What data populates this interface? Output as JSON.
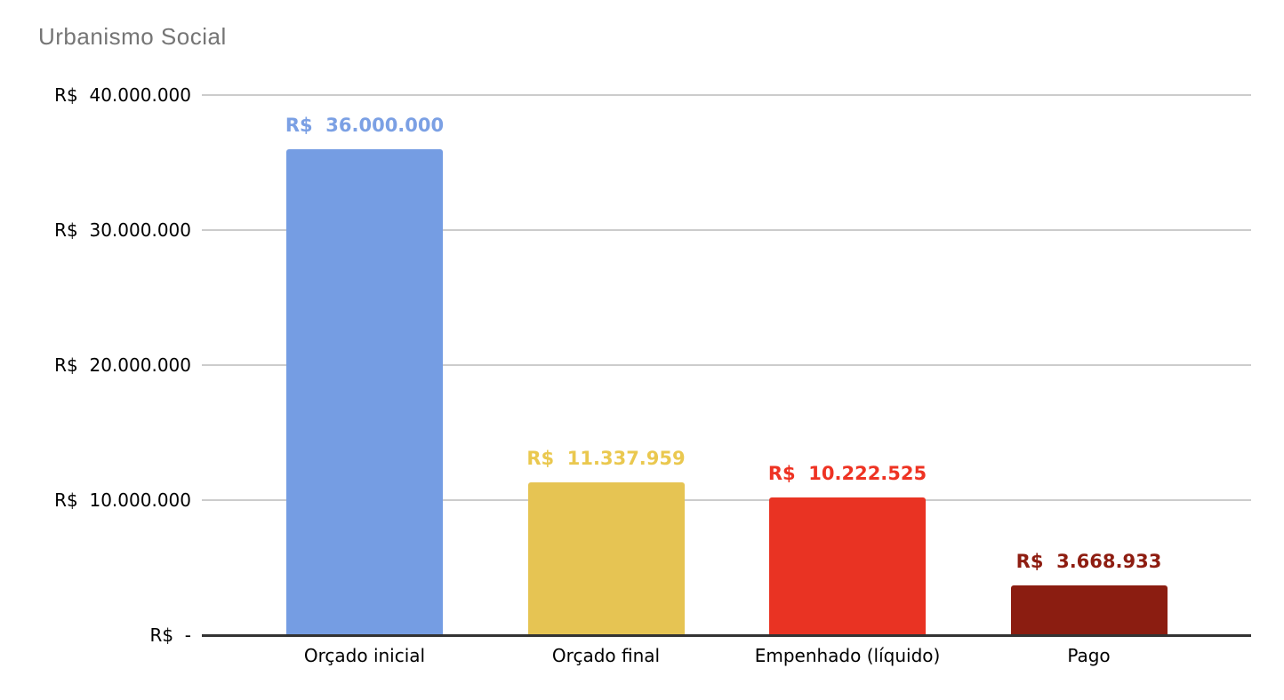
{
  "chart_data": {
    "type": "bar",
    "title": "Urbanismo Social",
    "currency_prefix": "R$",
    "categories": [
      "Orçado inicial",
      "Orçado final",
      "Empenhado (líquido)",
      "Pago"
    ],
    "values": [
      36000000,
      11337959,
      10222525,
      3668933
    ],
    "value_labels": [
      "R$  36.000.000",
      "R$  11.337.959",
      "R$  10.222.525",
      "R$  3.668.933"
    ],
    "bar_colors": [
      "#759de3",
      "#e6c453",
      "#e93323",
      "#8b1d11"
    ],
    "label_colors": [
      "#7ba0e4",
      "#eac84f",
      "#ee3323",
      "#8e1d11"
    ],
    "xlabel": "",
    "ylabel": "",
    "ylim": [
      0,
      40000000
    ],
    "y_ticks": [
      {
        "value": 40000000,
        "label": "R$  40.000.000"
      },
      {
        "value": 30000000,
        "label": "R$  30.000.000"
      },
      {
        "value": 20000000,
        "label": "R$  20.000.000"
      },
      {
        "value": 10000000,
        "label": "R$  10.000.000"
      },
      {
        "value": 0,
        "label": "R$  -"
      }
    ],
    "grid": true,
    "legend": "none",
    "title_color": "#757575",
    "gridline_color": "#cccccc",
    "baseline_color": "#333333",
    "background_color": "#ffffff"
  }
}
